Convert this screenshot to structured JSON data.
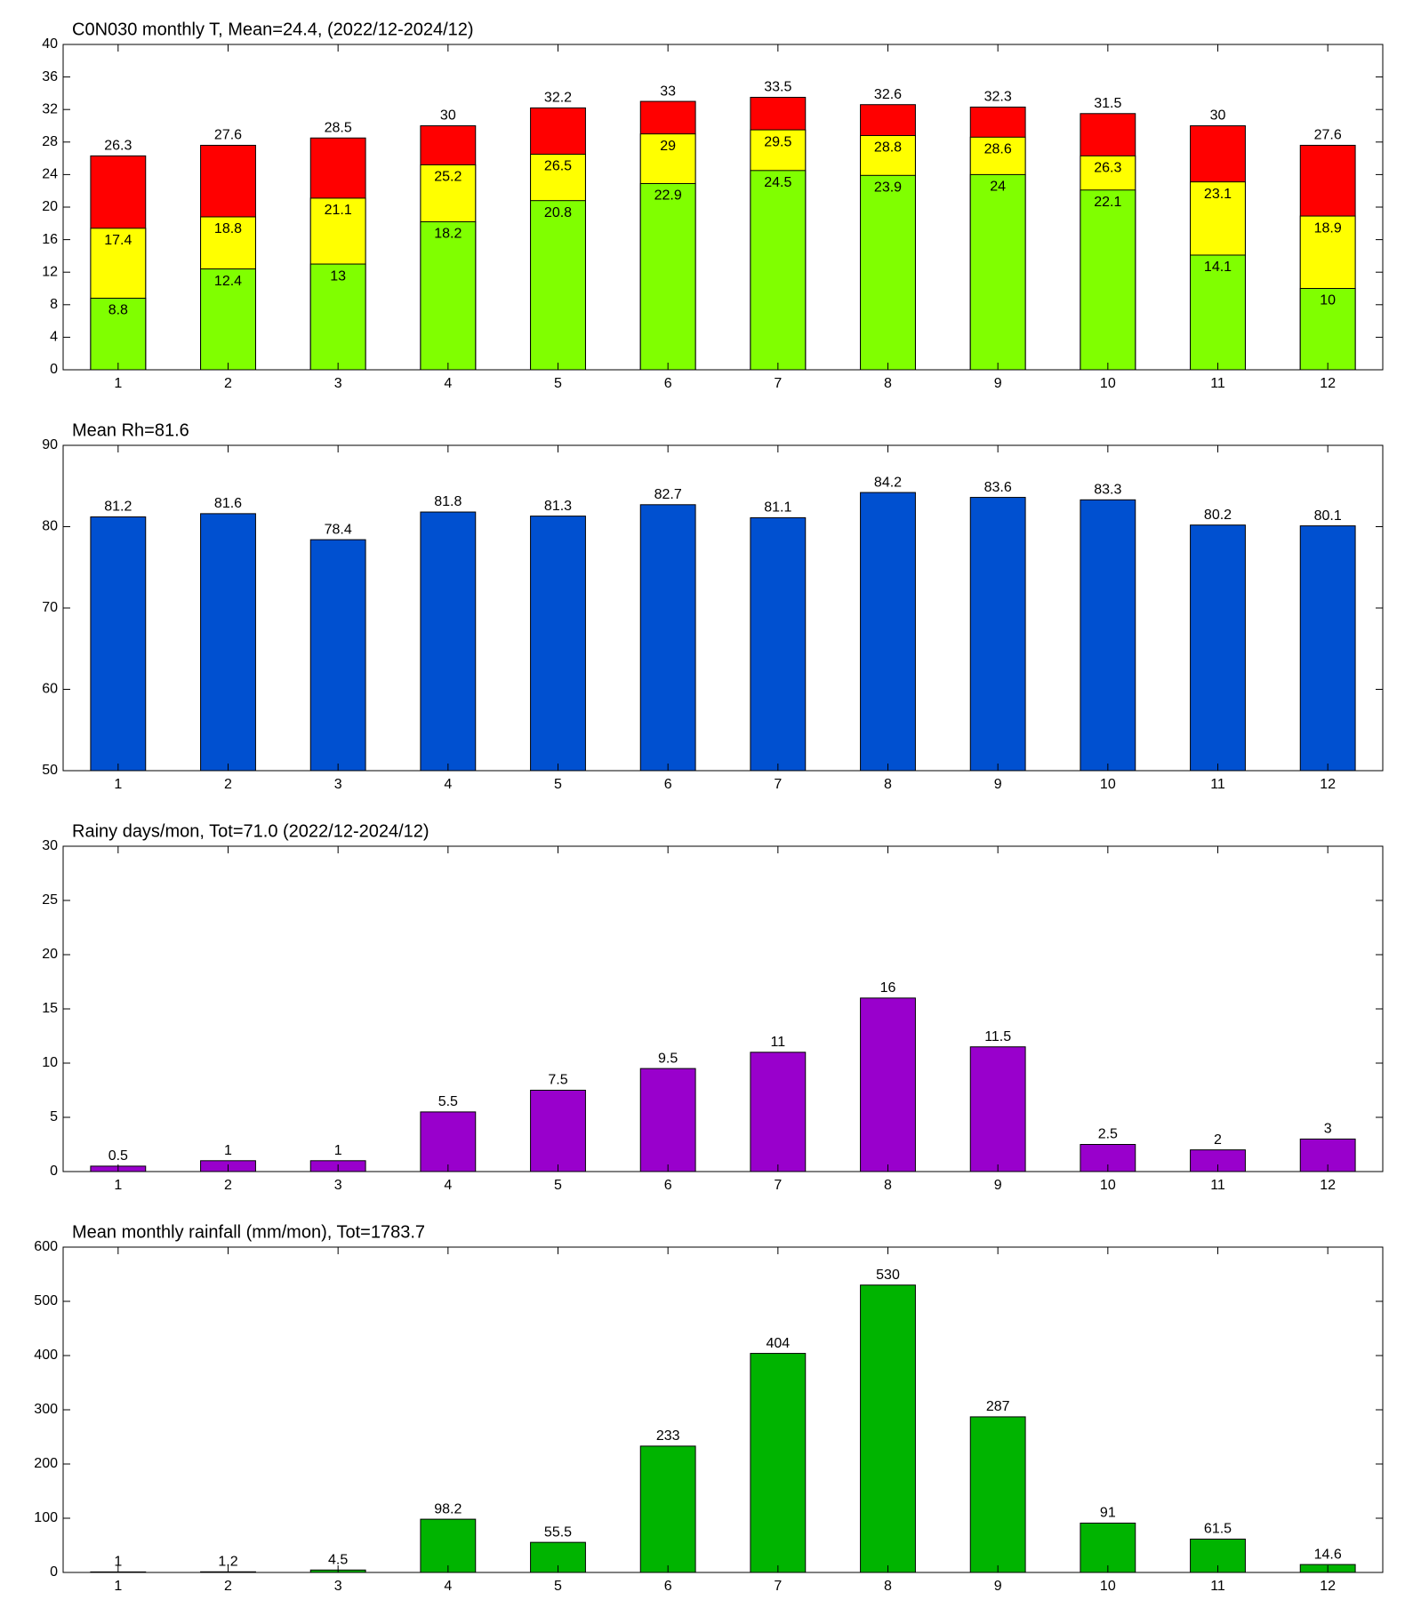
{
  "chart_data": [
    {
      "type": "bar",
      "title": "C0N030 monthly T, Mean=24.4, (2022/12-2024/12)",
      "categories": [
        1,
        2,
        3,
        4,
        5,
        6,
        7,
        8,
        9,
        10,
        11,
        12
      ],
      "series": [
        {
          "color": "#80ff00",
          "values": [
            8.8,
            12.4,
            13,
            18.2,
            20.8,
            22.9,
            24.5,
            23.9,
            24,
            22.1,
            14.1,
            10
          ]
        },
        {
          "color": "#ffff00",
          "values": [
            17.4,
            18.8,
            21.1,
            25.2,
            26.5,
            29,
            29.5,
            28.8,
            28.6,
            26.3,
            23.1,
            18.9
          ]
        },
        {
          "color": "#ff0000",
          "values": [
            26.3,
            27.6,
            28.5,
            30,
            32.2,
            33,
            33.5,
            32.6,
            32.3,
            31.5,
            30,
            27.6
          ]
        }
      ],
      "ylim": [
        0,
        40
      ],
      "yticks": [
        0,
        4,
        8,
        12,
        16,
        20,
        24,
        28,
        32,
        36,
        40
      ]
    },
    {
      "type": "bar",
      "title": "Mean Rh=81.6",
      "categories": [
        1,
        2,
        3,
        4,
        5,
        6,
        7,
        8,
        9,
        10,
        11,
        12
      ],
      "series": [
        {
          "color": "#0050d0",
          "values": [
            81.2,
            81.6,
            78.4,
            81.8,
            81.3,
            82.7,
            81.1,
            84.2,
            83.6,
            83.3,
            80.2,
            80.1
          ]
        }
      ],
      "ylim": [
        50,
        90
      ],
      "yticks": [
        50,
        60,
        70,
        80,
        90
      ]
    },
    {
      "type": "bar",
      "title": "Rainy days/mon, Tot=71.0 (2022/12-2024/12)",
      "categories": [
        1,
        2,
        3,
        4,
        5,
        6,
        7,
        8,
        9,
        10,
        11,
        12
      ],
      "series": [
        {
          "color": "#9900cc",
          "values": [
            0.5,
            1,
            1,
            5.5,
            7.5,
            9.5,
            11,
            16,
            11.5,
            2.5,
            2,
            3
          ]
        }
      ],
      "ylim": [
        0,
        30
      ],
      "yticks": [
        0,
        5,
        10,
        15,
        20,
        25,
        30
      ]
    },
    {
      "type": "bar",
      "title": "Mean monthly rainfall (mm/mon), Tot=1783.7",
      "categories": [
        1,
        2,
        3,
        4,
        5,
        6,
        7,
        8,
        9,
        10,
        11,
        12
      ],
      "series": [
        {
          "color": "#00b400",
          "values": [
            1,
            1.2,
            4.5,
            98.2,
            55.5,
            233,
            404,
            530,
            287,
            91,
            61.5,
            14.6
          ]
        }
      ],
      "ylim": [
        0,
        600
      ],
      "yticks": [
        0,
        100,
        200,
        300,
        400,
        500,
        600
      ]
    }
  ]
}
